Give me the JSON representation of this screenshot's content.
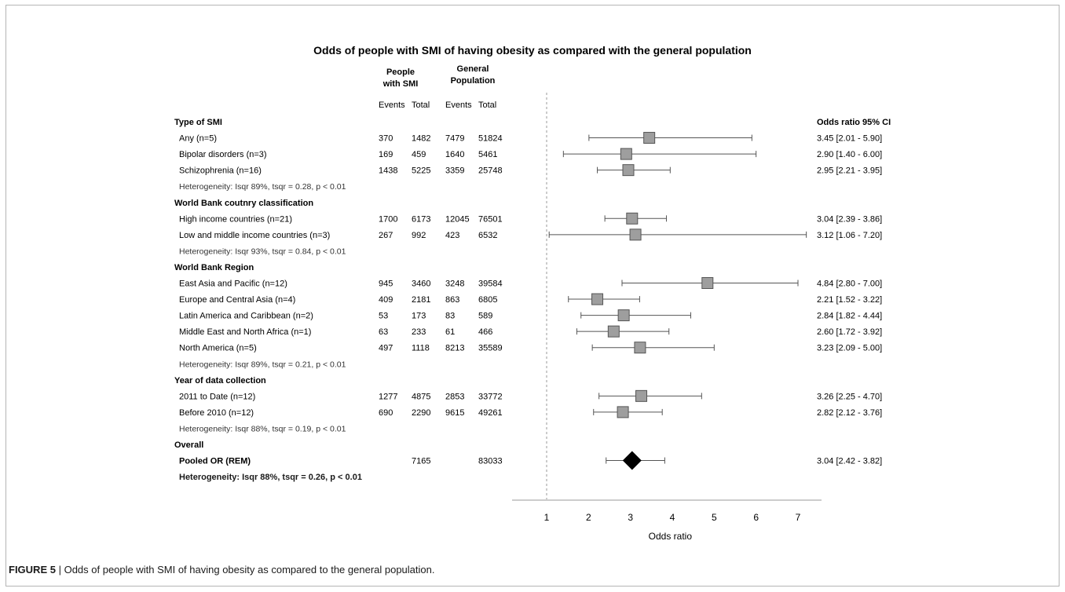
{
  "caption": {
    "label": "FIGURE 5",
    "separator": " | ",
    "text": "Odds of people with SMI of having obesity as compared to the general population."
  },
  "chart_data": {
    "type": "forest",
    "title": "Odds of people with SMI of having obesity as compared with the general population",
    "group_headers": [
      "People with SMI",
      "General Population"
    ],
    "column_headers": [
      "Events",
      "Total",
      "Events",
      "Total"
    ],
    "or_header": "Odds ratio 95% CI",
    "xlabel": "Odds ratio",
    "xlim": [
      1,
      7
    ],
    "xticks": [
      1,
      2,
      3,
      4,
      5,
      6,
      7
    ],
    "reference_line": 1,
    "rows": [
      {
        "kind": "header",
        "label": "Type of SMI"
      },
      {
        "kind": "study",
        "label": "Any (n=5)",
        "smi_events": "370",
        "smi_total": "1482",
        "gen_events": "7479",
        "gen_total": "51824",
        "or": 3.45,
        "lo": 2.01,
        "hi": 5.9,
        "ci_text": "3.45 [2.01 - 5.90]"
      },
      {
        "kind": "study",
        "label": "Bipolar disorders (n=3)",
        "smi_events": "169",
        "smi_total": "459",
        "gen_events": "1640",
        "gen_total": "5461",
        "or": 2.9,
        "lo": 1.4,
        "hi": 6.0,
        "ci_text": "2.90 [1.40 - 6.00]"
      },
      {
        "kind": "study",
        "label": "Schizophrenia (n=16)",
        "smi_events": "1438",
        "smi_total": "5225",
        "gen_events": "3359",
        "gen_total": "25748",
        "or": 2.95,
        "lo": 2.21,
        "hi": 3.95,
        "ci_text": "2.95 [2.21 - 3.95]"
      },
      {
        "kind": "het",
        "label": "Heterogeneity: Isqr 89%, tsqr = 0.28, p < 0.01"
      },
      {
        "kind": "header",
        "label": "World Bank coutnry classification"
      },
      {
        "kind": "study",
        "label": "High income countries (n=21)",
        "smi_events": "1700",
        "smi_total": "6173",
        "gen_events": "12045",
        "gen_total": "76501",
        "or": 3.04,
        "lo": 2.39,
        "hi": 3.86,
        "ci_text": "3.04 [2.39 - 3.86]"
      },
      {
        "kind": "study",
        "label": "Low and middle income countries (n=3)",
        "smi_events": "267",
        "smi_total": "992",
        "gen_events": "423",
        "gen_total": "6532",
        "or": 3.12,
        "lo": 1.06,
        "hi": 7.2,
        "ci_text": "3.12 [1.06 - 7.20]"
      },
      {
        "kind": "het",
        "label": "Heterogeneity: Isqr 93%, tsqr = 0.84, p < 0.01"
      },
      {
        "kind": "header",
        "label": "World Bank Region"
      },
      {
        "kind": "study",
        "label": "East Asia and Pacific (n=12)",
        "smi_events": "945",
        "smi_total": "3460",
        "gen_events": "3248",
        "gen_total": "39584",
        "or": 4.84,
        "lo": 2.8,
        "hi": 7.0,
        "ci_text": "4.84 [2.80 - 7.00]"
      },
      {
        "kind": "study",
        "label": "Europe and Central Asia (n=4)",
        "smi_events": "409",
        "smi_total": "2181",
        "gen_events": "863",
        "gen_total": "6805",
        "or": 2.21,
        "lo": 1.52,
        "hi": 3.22,
        "ci_text": "2.21 [1.52 - 3.22]"
      },
      {
        "kind": "study",
        "label": "Latin America and Caribbean (n=2)",
        "smi_events": "53",
        "smi_total": "173",
        "gen_events": "83",
        "gen_total": "589",
        "or": 2.84,
        "lo": 1.82,
        "hi": 4.44,
        "ci_text": "2.84 [1.82 - 4.44]"
      },
      {
        "kind": "study",
        "label": "Middle East and North Africa (n=1)",
        "smi_events": "63",
        "smi_total": "233",
        "gen_events": "61",
        "gen_total": "466",
        "or": 2.6,
        "lo": 1.72,
        "hi": 3.92,
        "ci_text": "2.60 [1.72 - 3.92]"
      },
      {
        "kind": "study",
        "label": "North America (n=5)",
        "smi_events": "497",
        "smi_total": "1118",
        "gen_events": "8213",
        "gen_total": "35589",
        "or": 3.23,
        "lo": 2.09,
        "hi": 5.0,
        "ci_text": "3.23 [2.09 - 5.00]"
      },
      {
        "kind": "het",
        "label": "Heterogeneity: Isqr 89%, tsqr = 0.21, p < 0.01"
      },
      {
        "kind": "header",
        "label": "Year of data collection"
      },
      {
        "kind": "study",
        "label": "2011 to Date (n=12)",
        "smi_events": "1277",
        "smi_total": "4875",
        "gen_events": "2853",
        "gen_total": "33772",
        "or": 3.26,
        "lo": 2.25,
        "hi": 4.7,
        "ci_text": "3.26 [2.25 - 4.70]"
      },
      {
        "kind": "study",
        "label": "Before 2010 (n=12)",
        "smi_events": "690",
        "smi_total": "2290",
        "gen_events": "9615",
        "gen_total": "49261",
        "or": 2.82,
        "lo": 2.12,
        "hi": 3.76,
        "ci_text": "2.82 [2.12 - 3.76]"
      },
      {
        "kind": "het",
        "label": "Heterogeneity: Isqr 88%, tsqr = 0.19, p < 0.01"
      },
      {
        "kind": "header",
        "label": "Overall"
      },
      {
        "kind": "pooled",
        "label": "Pooled OR (REM)",
        "smi_events": "",
        "smi_total": "7165",
        "gen_events": "",
        "gen_total": "83033",
        "or": 3.04,
        "lo": 2.42,
        "hi": 3.82,
        "ci_text": "3.04 [2.42 - 3.82]"
      },
      {
        "kind": "hetbold",
        "label": "Heterogeneity: Isqr 88%, tsqr = 0.26, p < 0.01"
      }
    ]
  },
  "colors": {
    "marker_fill": "#9e9e9e",
    "marker_stroke": "#555555",
    "diamond": "#000000",
    "whisker": "#555555",
    "reference_line": "#9a9a9a",
    "axis": "#999999",
    "frame": "#b5b5b5"
  }
}
